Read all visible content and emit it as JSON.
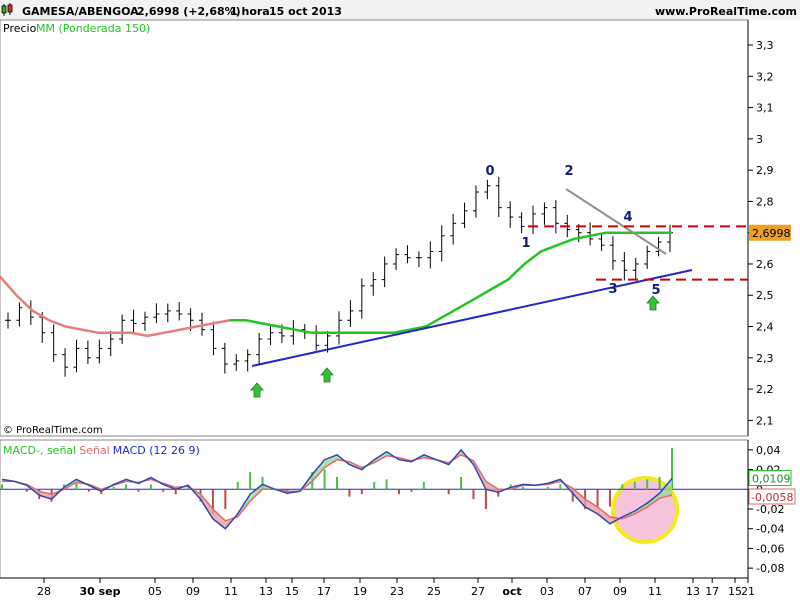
{
  "header": {
    "title": "GAMESA/ABENGOA",
    "quote": "2,6998 (+2,68%)",
    "timeframe": "1 hora",
    "date": "15 oct 2013",
    "site": "www.ProRealTime.com"
  },
  "price_legend": {
    "price": "Precio",
    "ma": "MM (Ponderada 150)"
  },
  "copyright": "© ProRealTime.com",
  "macd_legend": {
    "macd": "MACD-",
    "sep": ", señal",
    "signal": "Señal",
    "name": "MACD (12 26 9)"
  },
  "colors": {
    "ma_price": "#e87d7d",
    "ma_green": "#22c422",
    "trend_blue": "#1f28cc",
    "trend_gray": "#909090",
    "resistance_red": "#cc0000",
    "arrow_green": "#36c236",
    "wave_label": "#141e78",
    "macd_line": "#3048b0",
    "signal_line": "#e26a6a",
    "hist_green": "#48c048",
    "hist_red": "#c04848",
    "circle_yellow": "#f2ea1a",
    "circle_fill": "#f7c2dc"
  },
  "chart_data": [
    {
      "type": "line",
      "title": "GAMESA/ABENGOA",
      "ylim": [
        2.05,
        3.38
      ],
      "y_ticks": [
        "3,3",
        "3,2",
        "3,1",
        "3",
        "2,9",
        "2,8",
        "2,7",
        "2,6",
        "2,5",
        "2,4",
        "2,3",
        "2,2",
        "2,1"
      ],
      "x_ticks": [
        "28",
        "30 sep",
        "05",
        "09",
        "11",
        "13",
        "15",
        "17",
        "19",
        "23",
        "25",
        "27",
        "oct",
        "03",
        "07",
        "09",
        "11",
        "13",
        "15",
        "17",
        "21"
      ],
      "last_value_label": "2,6998",
      "series": [
        {
          "name": "Precio",
          "values": [
            2.42,
            2.46,
            2.43,
            2.38,
            2.31,
            2.27,
            2.33,
            2.3,
            2.33,
            2.36,
            2.42,
            2.41,
            2.43,
            2.44,
            2.45,
            2.44,
            2.42,
            2.39,
            2.33,
            2.28,
            2.29,
            2.31,
            2.36,
            2.38,
            2.37,
            2.39,
            2.38,
            2.34,
            2.37,
            2.42,
            2.45,
            2.53,
            2.55,
            2.6,
            2.63,
            2.62,
            2.62,
            2.64,
            2.69,
            2.73,
            2.77,
            2.83,
            2.85,
            2.78,
            2.75,
            2.72,
            2.76,
            2.78,
            2.73,
            2.71,
            2.7,
            2.68,
            2.66,
            2.61,
            2.58,
            2.6,
            2.64,
            2.67,
            2.6998
          ]
        },
        {
          "name": "MM (Ponderada 150)",
          "values": [
            2.56,
            2.5,
            2.45,
            2.42,
            2.4,
            2.39,
            2.38,
            2.38,
            2.38,
            2.37,
            2.38,
            2.39,
            2.4,
            2.41,
            2.42,
            2.42,
            2.41,
            2.4,
            2.39,
            2.38,
            2.38,
            2.38,
            2.38,
            2.38,
            2.38,
            2.39,
            2.4,
            2.43,
            2.46,
            2.49,
            2.52,
            2.55,
            2.6,
            2.64,
            2.66,
            2.68,
            2.69,
            2.7,
            2.7,
            2.7,
            2.7,
            2.7
          ]
        }
      ],
      "annotations": {
        "wave_labels": [
          "0",
          "1",
          "2",
          "3",
          "4",
          "5"
        ],
        "resistance_levels": [
          2.72,
          2.55
        ]
      }
    },
    {
      "type": "line",
      "title": "MACD (12 26 9)",
      "ylim": [
        -0.09,
        0.05
      ],
      "y_ticks": [
        "0,04",
        "0,02",
        "0",
        "-0,02",
        "-0,04",
        "-0,06",
        "-0,08"
      ],
      "value_labels": [
        "0,0109",
        "-0,0058"
      ],
      "series": [
        {
          "name": "MACD",
          "values": [
            0.01,
            0.008,
            0.004,
            -0.006,
            -0.01,
            0.002,
            0.01,
            0.004,
            -0.002,
            0.005,
            0.01,
            0.006,
            0.012,
            0.005,
            0.0,
            0.004,
            -0.01,
            -0.03,
            -0.04,
            -0.025,
            -0.005,
            0.005,
            0.0,
            -0.004,
            -0.002,
            0.015,
            0.03,
            0.035,
            0.025,
            0.02,
            0.03,
            0.038,
            0.03,
            0.028,
            0.035,
            0.03,
            0.025,
            0.04,
            0.025,
            0.0,
            -0.003,
            0.002,
            0.005,
            0.004,
            0.006,
            0.01,
            -0.004,
            -0.018,
            -0.025,
            -0.035,
            -0.028,
            -0.022,
            -0.014,
            -0.004,
            0.0109
          ]
        },
        {
          "name": "Señal",
          "values": [
            0.008,
            0.008,
            0.005,
            -0.002,
            -0.005,
            0.0,
            0.007,
            0.005,
            0.0,
            0.004,
            0.008,
            0.007,
            0.01,
            0.006,
            0.002,
            0.003,
            -0.005,
            -0.02,
            -0.032,
            -0.028,
            -0.012,
            0.0,
            0.0,
            -0.002,
            -0.002,
            0.008,
            0.022,
            0.03,
            0.028,
            0.022,
            0.027,
            0.034,
            0.032,
            0.029,
            0.032,
            0.03,
            0.027,
            0.035,
            0.029,
            0.008,
            0.0,
            0.0,
            0.004,
            0.004,
            0.005,
            0.008,
            0.001,
            -0.01,
            -0.018,
            -0.028,
            -0.03,
            -0.025,
            -0.018,
            -0.009,
            -0.0058
          ]
        }
      ]
    }
  ]
}
